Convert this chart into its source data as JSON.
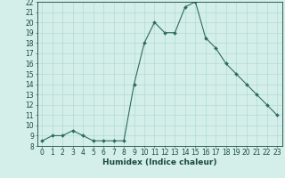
{
  "x": [
    0,
    1,
    2,
    3,
    4,
    5,
    6,
    7,
    8,
    9,
    10,
    11,
    12,
    13,
    14,
    15,
    16,
    17,
    18,
    19,
    20,
    21,
    22,
    23
  ],
  "y": [
    8.5,
    9,
    9,
    9.5,
    9,
    8.5,
    8.5,
    8.5,
    8.5,
    14,
    18,
    20,
    19,
    19,
    21.5,
    22,
    18.5,
    17.5,
    16,
    15,
    14,
    13,
    12,
    11
  ],
  "xlabel": "Humidex (Indice chaleur)",
  "ylim": [
    8,
    22
  ],
  "xlim": [
    -0.5,
    23.5
  ],
  "yticks": [
    8,
    9,
    10,
    11,
    12,
    13,
    14,
    15,
    16,
    17,
    18,
    19,
    20,
    21,
    22
  ],
  "xticks": [
    0,
    1,
    2,
    3,
    4,
    5,
    6,
    7,
    8,
    9,
    10,
    11,
    12,
    13,
    14,
    15,
    16,
    17,
    18,
    19,
    20,
    21,
    22,
    23
  ],
  "line_color": "#2e6b5e",
  "bg_color": "#d4eeea",
  "grid_color": "#a8d8d0",
  "tick_color": "#1a4a40",
  "label_color": "#1a4a40",
  "font_size": 5.5,
  "xlabel_fontsize": 6.5
}
